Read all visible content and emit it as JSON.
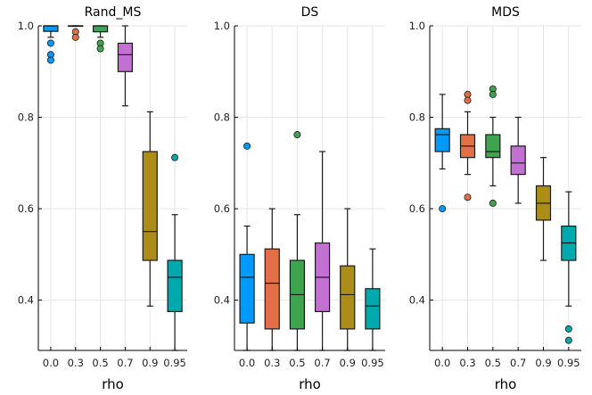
{
  "chart_data": [
    {
      "type": "box",
      "title": "Rand_MS",
      "xlabel": "rho",
      "ylabel": "",
      "ylim": [
        0.29,
        1.0
      ],
      "yticks": [
        "0.4",
        "0.6",
        "0.8",
        "1.0"
      ],
      "ytick_values": [
        0.4,
        0.6,
        0.8,
        1.0
      ],
      "categories": [
        "0.0",
        "0.3",
        "0.5",
        "0.7",
        "0.9",
        "0.95"
      ],
      "boxes": [
        {
          "q1": 0.988,
          "median": 1.0,
          "q3": 1.0,
          "whisker_low": 0.975,
          "whisker_high": 1.0,
          "outliers": [
            0.962,
            0.937,
            0.925
          ]
        },
        {
          "q1": 1.0,
          "median": 1.0,
          "q3": 1.0,
          "whisker_low": 1.0,
          "whisker_high": 1.0,
          "outliers": [
            0.987,
            0.975
          ]
        },
        {
          "q1": 0.987,
          "median": 1.0,
          "q3": 1.0,
          "whisker_low": 0.975,
          "whisker_high": 1.0,
          "outliers": [
            0.962,
            0.95
          ]
        },
        {
          "q1": 0.9,
          "median": 0.937,
          "q3": 0.962,
          "whisker_low": 0.825,
          "whisker_high": 1.0,
          "outliers": []
        },
        {
          "q1": 0.487,
          "median": 0.55,
          "q3": 0.725,
          "whisker_low": 0.387,
          "whisker_high": 0.812,
          "outliers": []
        },
        {
          "q1": 0.375,
          "median": 0.45,
          "q3": 0.487,
          "whisker_low": 0.29,
          "whisker_high": 0.587,
          "outliers": [
            0.712
          ]
        }
      ]
    },
    {
      "type": "box",
      "title": "DS",
      "xlabel": "rho",
      "ylabel": "",
      "ylim": [
        0.29,
        1.0
      ],
      "yticks": [
        "0.4",
        "0.6",
        "0.8",
        "1.0"
      ],
      "ytick_values": [
        0.4,
        0.6,
        0.8,
        1.0
      ],
      "categories": [
        "0.0",
        "0.3",
        "0.5",
        "0.7",
        "0.9",
        "0.95"
      ],
      "boxes": [
        {
          "q1": 0.35,
          "median": 0.45,
          "q3": 0.5,
          "whisker_low": 0.29,
          "whisker_high": 0.562,
          "outliers": [
            0.737
          ]
        },
        {
          "q1": 0.337,
          "median": 0.437,
          "q3": 0.512,
          "whisker_low": 0.29,
          "whisker_high": 0.6,
          "outliers": []
        },
        {
          "q1": 0.337,
          "median": 0.412,
          "q3": 0.487,
          "whisker_low": 0.29,
          "whisker_high": 0.587,
          "outliers": [
            0.762
          ]
        },
        {
          "q1": 0.375,
          "median": 0.45,
          "q3": 0.525,
          "whisker_low": 0.29,
          "whisker_high": 0.725,
          "outliers": []
        },
        {
          "q1": 0.337,
          "median": 0.412,
          "q3": 0.475,
          "whisker_low": 0.29,
          "whisker_high": 0.6,
          "outliers": []
        },
        {
          "q1": 0.337,
          "median": 0.387,
          "q3": 0.425,
          "whisker_low": 0.29,
          "whisker_high": 0.512,
          "outliers": []
        }
      ]
    },
    {
      "type": "box",
      "title": "MDS",
      "xlabel": "rho",
      "ylabel": "",
      "ylim": [
        0.29,
        1.0
      ],
      "yticks": [
        "0.4",
        "0.6",
        "0.8",
        "1.0"
      ],
      "ytick_values": [
        0.4,
        0.6,
        0.8,
        1.0
      ],
      "categories": [
        "0.0",
        "0.3",
        "0.5",
        "0.7",
        "0.9",
        "0.95"
      ],
      "boxes": [
        {
          "q1": 0.725,
          "median": 0.762,
          "q3": 0.775,
          "whisker_low": 0.687,
          "whisker_high": 0.85,
          "outliers": [
            0.6
          ]
        },
        {
          "q1": 0.712,
          "median": 0.737,
          "q3": 0.762,
          "whisker_low": 0.675,
          "whisker_high": 0.812,
          "outliers": [
            0.85,
            0.837,
            0.625
          ]
        },
        {
          "q1": 0.712,
          "median": 0.725,
          "q3": 0.762,
          "whisker_low": 0.65,
          "whisker_high": 0.8,
          "outliers": [
            0.862,
            0.85,
            0.612
          ]
        },
        {
          "q1": 0.675,
          "median": 0.7,
          "q3": 0.737,
          "whisker_low": 0.612,
          "whisker_high": 0.8,
          "outliers": []
        },
        {
          "q1": 0.575,
          "median": 0.612,
          "q3": 0.65,
          "whisker_low": 0.487,
          "whisker_high": 0.712,
          "outliers": []
        },
        {
          "q1": 0.487,
          "median": 0.525,
          "q3": 0.562,
          "whisker_low": 0.387,
          "whisker_high": 0.637,
          "outliers": [
            0.337,
            0.312
          ]
        }
      ]
    }
  ],
  "colors": [
    "#009AFA",
    "#E36F47",
    "#3EA44E",
    "#C270D2",
    "#AC8D18",
    "#00A9AD"
  ]
}
